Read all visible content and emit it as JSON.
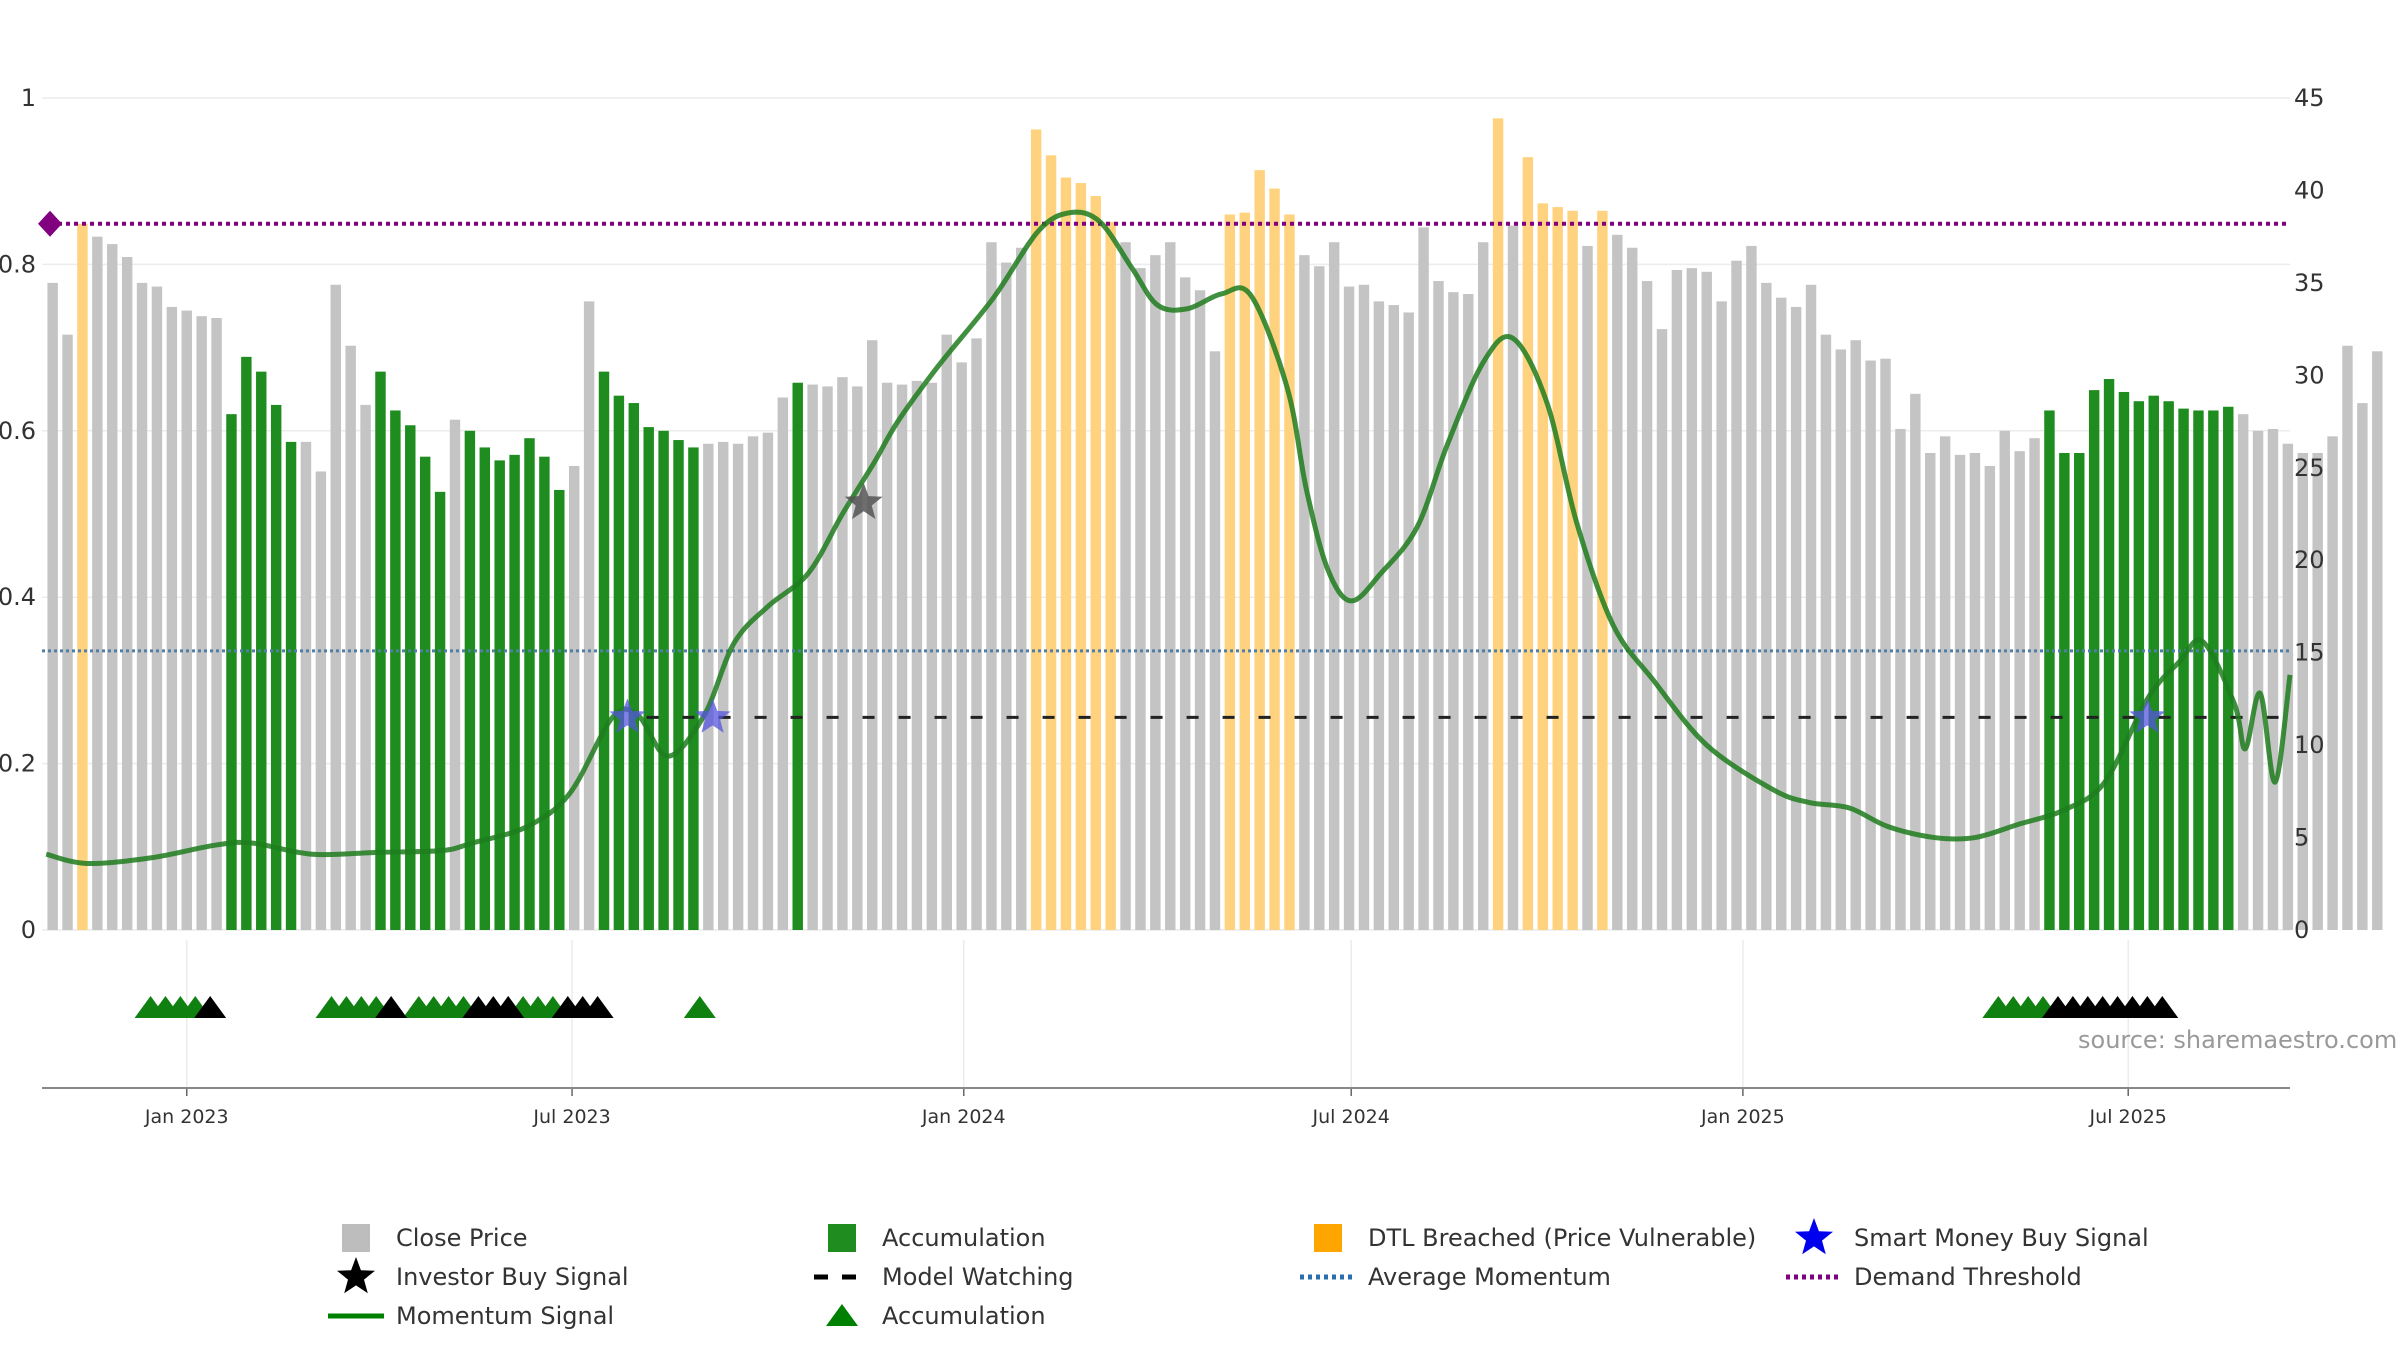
{
  "chart_data": {
    "type": "bar",
    "title": "",
    "y_left": {
      "range": [
        0,
        1
      ],
      "ticks": [
        "0",
        "0.2",
        "0.4",
        "0.6",
        "0.8",
        "1"
      ]
    },
    "y_right": {
      "range": [
        0,
        45
      ],
      "ticks": [
        "0",
        "5",
        "10",
        "15",
        "20",
        "25",
        "30",
        "35",
        "40",
        "45"
      ]
    },
    "x_ticks": [
      "Jan 2023",
      "Jul 2023",
      "Jan 2024",
      "Jul 2024",
      "Jan 2025",
      "Jul 2025"
    ],
    "x_range": [
      "2022-10-25",
      "2025-09-15"
    ],
    "bar_states_note": "gray = Close Price, green = Accumulation, orange = DTL Breached",
    "weekly_bars": {
      "start_week": "2022-10-30",
      "close_price": [
        35.0,
        32.2,
        38.2,
        37.5,
        37.1,
        36.4,
        35.0,
        34.8,
        33.7,
        33.5,
        33.2,
        33.1,
        27.9,
        31.0,
        30.2,
        28.4,
        26.4,
        26.4,
        24.8,
        34.9,
        31.6,
        28.4,
        30.2,
        28.1,
        27.3,
        25.6,
        23.7,
        27.6,
        27.0,
        26.1,
        25.4,
        25.7,
        26.6,
        25.6,
        23.8,
        25.1,
        34.0,
        30.2,
        28.9,
        28.5,
        27.2,
        27.0,
        26.5,
        26.1,
        26.3,
        26.4,
        26.3,
        26.7,
        26.9,
        28.8,
        29.6,
        29.5,
        29.4,
        29.9,
        29.4,
        31.9,
        29.6,
        29.5,
        29.7,
        29.6,
        32.2,
        30.7,
        32.0,
        37.2,
        36.1,
        36.9,
        43.3,
        41.9,
        40.7,
        40.4,
        39.7,
        38.3,
        37.2,
        35.8,
        36.5,
        37.2,
        35.3,
        34.6,
        31.3,
        38.7,
        38.8,
        41.1,
        40.1,
        38.7,
        36.5,
        35.9,
        37.2,
        34.8,
        34.9,
        34.0,
        33.8,
        33.4,
        38.0,
        35.1,
        34.5,
        34.4,
        37.2,
        43.9,
        38.1,
        41.8,
        39.3,
        39.1,
        38.9,
        37.0,
        38.9,
        37.6,
        36.9,
        35.1,
        32.5,
        35.7,
        35.8,
        35.6,
        34.0,
        36.2,
        37.0,
        35.0,
        34.2,
        33.7,
        34.9,
        32.2,
        31.4,
        31.9,
        30.8,
        30.9,
        27.1,
        29.0,
        25.8,
        26.7,
        25.7,
        25.8,
        25.1,
        27.0,
        25.9,
        26.6,
        28.1,
        25.8,
        25.8,
        29.2,
        29.8,
        29.1,
        28.6,
        28.9,
        28.6,
        28.2,
        28.1,
        28.1,
        28.3,
        27.9,
        27.0,
        27.1,
        26.3,
        25.8,
        25.8,
        26.7,
        31.6,
        28.5,
        31.3
      ],
      "accumulation_weeks": [
        12,
        13,
        14,
        15,
        16,
        22,
        23,
        24,
        25,
        26,
        28,
        29,
        30,
        31,
        32,
        33,
        34,
        37,
        38,
        39,
        40,
        41,
        42,
        43,
        50,
        134,
        135,
        136,
        137,
        138,
        139,
        140,
        141,
        142,
        143,
        144,
        145,
        146
      ],
      "dtl_breached_weeks": [
        2,
        66,
        67,
        68,
        69,
        70,
        71,
        79,
        80,
        81,
        82,
        83,
        97,
        99,
        100,
        101,
        102,
        104
      ]
    },
    "series": [
      {
        "name": "Momentum Signal",
        "axis": "right",
        "points": [
          [
            "2022-10-27",
            4.1
          ],
          [
            "2022-11-15",
            3.6
          ],
          [
            "2022-12-15",
            3.9
          ],
          [
            "2023-01-15",
            4.6
          ],
          [
            "2023-02-01",
            4.7
          ],
          [
            "2023-03-01",
            4.1
          ],
          [
            "2023-04-01",
            4.2
          ],
          [
            "2023-05-01",
            4.3
          ],
          [
            "2023-05-15",
            4.7
          ],
          [
            "2023-06-10",
            5.6
          ],
          [
            "2023-06-30",
            7.4
          ],
          [
            "2023-07-20",
            11.5
          ],
          [
            "2023-08-01",
            11.6
          ],
          [
            "2023-08-15",
            9.4
          ],
          [
            "2023-09-01",
            11.6
          ],
          [
            "2023-09-15",
            15.5
          ],
          [
            "2023-10-01",
            17.5
          ],
          [
            "2023-10-20",
            19.3
          ],
          [
            "2023-11-05",
            22.5
          ],
          [
            "2023-11-20",
            25.3
          ],
          [
            "2023-12-01",
            27.5
          ],
          [
            "2023-12-20",
            30.5
          ],
          [
            "2024-01-15",
            34.2
          ],
          [
            "2024-02-05",
            37.8
          ],
          [
            "2024-02-20",
            38.8
          ],
          [
            "2024-03-05",
            38.3
          ],
          [
            "2024-03-20",
            35.8
          ],
          [
            "2024-04-01",
            33.8
          ],
          [
            "2024-04-15",
            33.6
          ],
          [
            "2024-05-01",
            34.4
          ],
          [
            "2024-05-15",
            34.3
          ],
          [
            "2024-06-01",
            29.3
          ],
          [
            "2024-06-10",
            23.8
          ],
          [
            "2024-06-20",
            19.5
          ],
          [
            "2024-07-01",
            17.8
          ],
          [
            "2024-07-15",
            19.3
          ],
          [
            "2024-08-01",
            21.8
          ],
          [
            "2024-08-15",
            26.2
          ],
          [
            "2024-09-01",
            30.7
          ],
          [
            "2024-09-15",
            32.0
          ],
          [
            "2024-10-01",
            28.5
          ],
          [
            "2024-10-15",
            22.0
          ],
          [
            "2024-11-01",
            16.5
          ],
          [
            "2024-11-20",
            13.5
          ],
          [
            "2024-12-15",
            10.0
          ],
          [
            "2025-01-15",
            7.6
          ],
          [
            "2025-02-01",
            6.9
          ],
          [
            "2025-02-20",
            6.6
          ],
          [
            "2025-03-10",
            5.6
          ],
          [
            "2025-04-01",
            5.0
          ],
          [
            "2025-04-20",
            5.0
          ],
          [
            "2025-05-10",
            5.7
          ],
          [
            "2025-06-01",
            6.5
          ],
          [
            "2025-06-20",
            8.0
          ],
          [
            "2025-07-10",
            12.5
          ],
          [
            "2025-07-25",
            14.5
          ],
          [
            "2025-08-05",
            15.6
          ],
          [
            "2025-08-20",
            12.2
          ],
          [
            "2025-08-25",
            9.8
          ],
          [
            "2025-09-01",
            12.8
          ],
          [
            "2025-09-08",
            8.0
          ],
          [
            "2025-09-15",
            13.8
          ]
        ]
      },
      {
        "name": "Average Momentum",
        "axis": "right",
        "value": 15.1
      },
      {
        "name": "Model Watching",
        "axis": "right",
        "value": 11.5,
        "from": "2023-08-05",
        "to": "2025-09-10"
      },
      {
        "name": "Demand Threshold",
        "axis": "right",
        "value": 38.2
      }
    ],
    "smart_money_buy_signals": [
      [
        "2023-07-27",
        11.5
      ],
      [
        "2023-09-05",
        11.5
      ],
      [
        "2025-07-10",
        11.5
      ]
    ],
    "investor_buy_signals": [
      [
        "2023-11-15",
        23.1
      ]
    ],
    "accumulation_markers": {
      "green": [
        "2022-12-15",
        "2022-12-22",
        "2022-12-29",
        "2023-01-05",
        "2023-03-10",
        "2023-03-17",
        "2023-03-24",
        "2023-03-31",
        "2023-04-20",
        "2023-04-27",
        "2023-05-04",
        "2023-05-11",
        "2023-06-01",
        "2023-06-08",
        "2023-06-15",
        "2023-06-22",
        "2023-08-30",
        "2025-05-01",
        "2025-05-08",
        "2025-05-15",
        "2025-05-22"
      ],
      "black": [
        "2023-01-12",
        "2023-04-07",
        "2023-05-18",
        "2023-05-25",
        "2023-06-01",
        "2023-06-29",
        "2023-07-06",
        "2023-07-13",
        "2025-05-29",
        "2025-06-05",
        "2025-06-12",
        "2025-06-19",
        "2025-06-26",
        "2025-07-03",
        "2025-07-10",
        "2025-07-17"
      ]
    },
    "legend": {
      "placement": "bottom",
      "items": [
        {
          "key": "close",
          "label": "Close Price",
          "color": "#bdbdbd"
        },
        {
          "key": "accum_bar",
          "label": "Accumulation",
          "color": "#1e8c1e"
        },
        {
          "key": "dtl",
          "label": "DTL Breached (Price Vulnerable)",
          "color": "#ffa500"
        },
        {
          "key": "smart",
          "label": "Smart Money Buy Signal",
          "color": "#0000ee"
        },
        {
          "key": "investor",
          "label": "Investor Buy Signal",
          "color": "#000000"
        },
        {
          "key": "watch",
          "label": "Model Watching",
          "color": "#000000"
        },
        {
          "key": "avgmom",
          "label": "Average Momentum",
          "color": "#2a6db0"
        },
        {
          "key": "demand",
          "label": "Demand Threshold",
          "color": "#800080"
        },
        {
          "key": "momentum",
          "label": "Momentum Signal",
          "color": "#008000"
        },
        {
          "key": "accum_tri",
          "label": "Accumulation",
          "color": "#008000"
        }
      ]
    },
    "grid": true
  },
  "source_text": "source: sharemaestro.com",
  "colors": {
    "close": "#c4c4c4",
    "accumulation": "#1e8c1e",
    "dtl": "#ffd27f",
    "momentum": "#1f7d1f",
    "avg_momentum": "#4f7fa6",
    "demand": "#800080",
    "smart_star": "#5555dd",
    "investor_star": "#555555"
  }
}
